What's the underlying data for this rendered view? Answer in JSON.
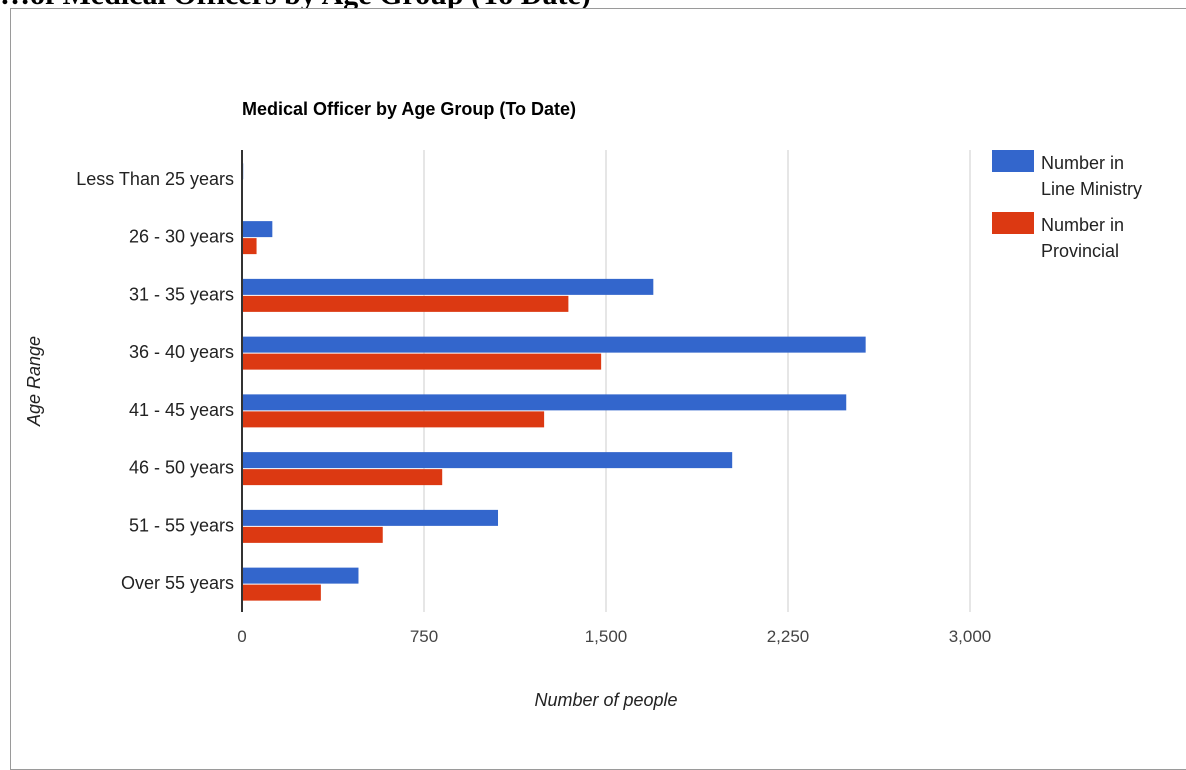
{
  "page": {
    "heading": "…of Medical Officers by Age Group (To Date)"
  },
  "chart_data": {
    "type": "bar",
    "orientation": "horizontal",
    "title": "Medical Officer by Age Group (To Date)",
    "xlabel": "Number of people",
    "ylabel": "Age Range",
    "xlim": [
      0,
      3000
    ],
    "xticks": [
      "0",
      "750",
      "1,500",
      "2,250",
      "3,000"
    ],
    "xtick_values": [
      0,
      750,
      1500,
      2250,
      3000
    ],
    "grid": true,
    "legend_position": "right",
    "categories": [
      "Less Than 25 years",
      "26 - 30 years",
      "31 - 35 years",
      "36 - 40 years",
      "41 - 45 years",
      "46 - 50 years",
      "51 - 55 years",
      "Over 55 years"
    ],
    "series": [
      {
        "name": "Number in Line Ministry",
        "color": "#3366cc",
        "values": [
          5,
          125,
          1695,
          2570,
          2490,
          2020,
          1055,
          480
        ]
      },
      {
        "name": "Number in Provincial",
        "color": "#dc3912",
        "values": [
          0,
          60,
          1345,
          1480,
          1245,
          825,
          580,
          325
        ]
      }
    ]
  }
}
